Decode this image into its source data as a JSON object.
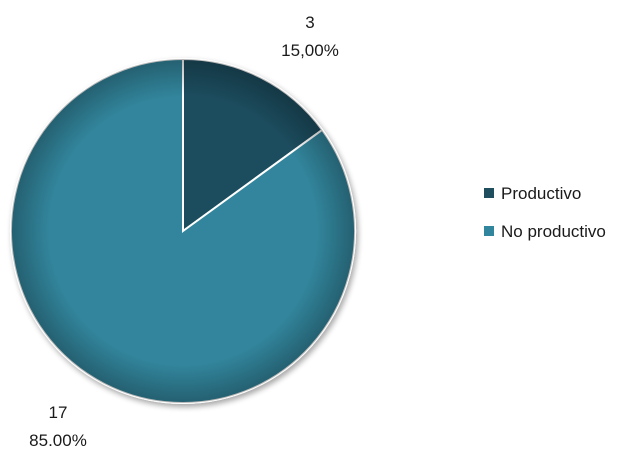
{
  "chart_data": {
    "type": "pie",
    "title": "",
    "categories": [
      "Productivo",
      "No productivo"
    ],
    "values": [
      3,
      17
    ],
    "percent_labels": [
      "15,00%",
      "85.00%"
    ],
    "colors": [
      "#1f4e5f",
      "#31859c"
    ],
    "start_angle_deg": 0,
    "direction": "clockwise",
    "legend_position": "right",
    "data_labels": "value-and-percent"
  }
}
